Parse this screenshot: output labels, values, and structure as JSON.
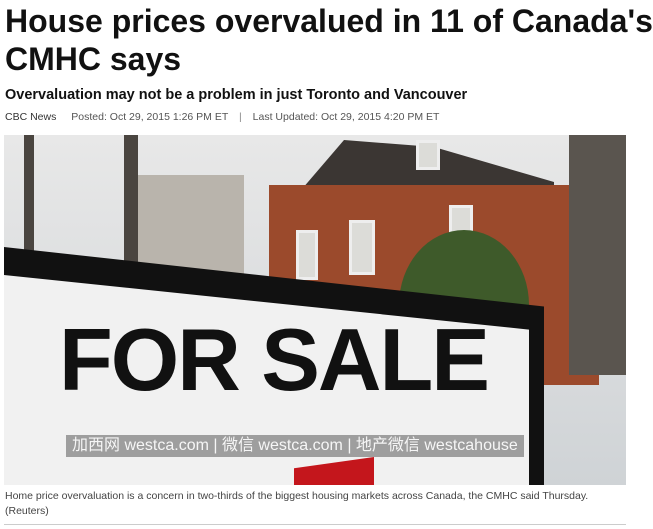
{
  "article": {
    "title_line1": "House prices overvalued in 11 of Canada's",
    "title_line2": "CMHC says",
    "subtitle": "Overvaluation may not be a problem in just Toronto and Vancouver",
    "source": "CBC News",
    "posted": "Posted: Oct 29, 2015 1:26 PM ET",
    "separator": "|",
    "updated": "Last Updated: Oct 29, 2015 4:20 PM ET",
    "photo": {
      "sign_text": "FOR SALE",
      "watermark": "加西网 westca.com | 微信 westca.com | 地产微信 westcahouse"
    },
    "caption": "Home price overvaluation is a concern in two-thirds of the biggest housing markets across Canada, the CMHC said Thursday. (Reuters)"
  }
}
